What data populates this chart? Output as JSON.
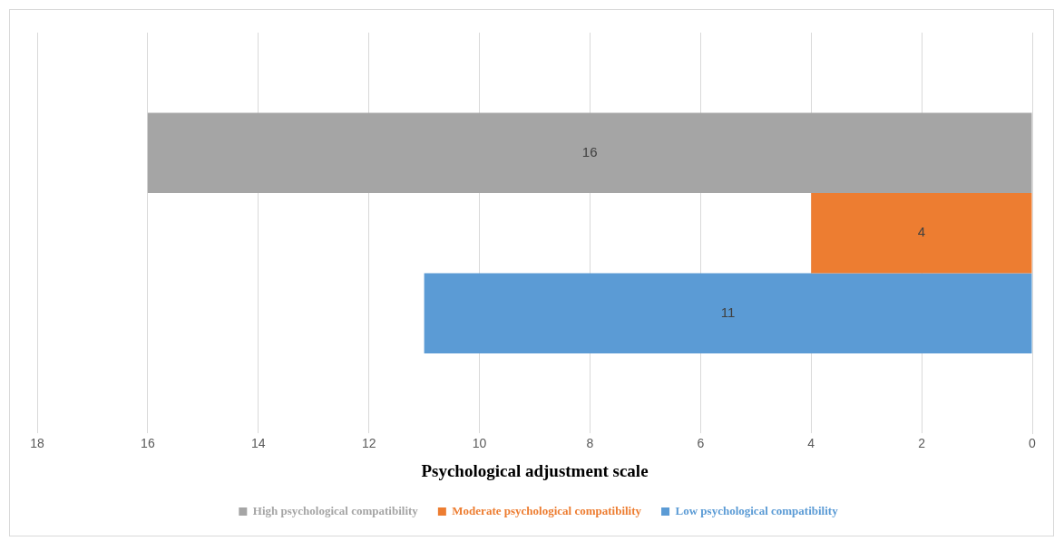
{
  "chart_data": {
    "type": "bar",
    "orientation": "horizontal",
    "xlabel": "Psychological adjustment scale",
    "categories": [
      null
    ],
    "series": [
      {
        "name": "High psychological compatibility",
        "color": "#a5a5a5",
        "values": [
          16
        ]
      },
      {
        "name": "Moderate psychological compatibility",
        "color": "#ed7d31",
        "values": [
          4
        ]
      },
      {
        "name": "Low psychological compatibility",
        "color": "#5b9bd5",
        "values": [
          11
        ]
      }
    ],
    "xlim": [
      18,
      0
    ],
    "xticks": [
      18,
      16,
      14,
      12,
      10,
      8,
      6,
      4,
      2,
      0
    ],
    "grid": "x",
    "legend": "bottom",
    "data_labels": true
  }
}
